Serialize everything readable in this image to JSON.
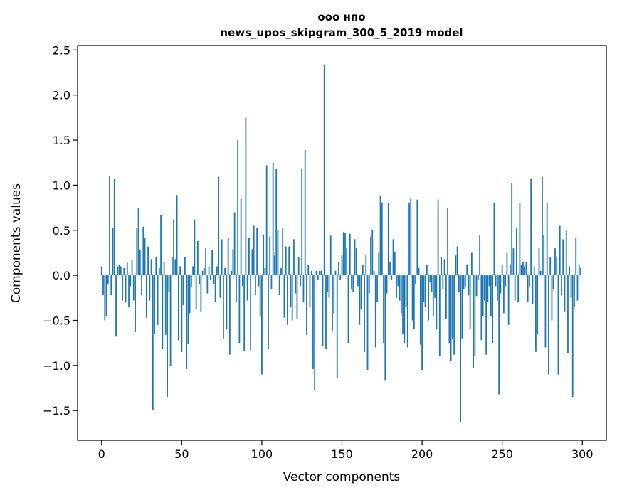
{
  "chart_data": {
    "type": "bar",
    "title_line1": "ооо нпо",
    "title_line2": "news_upos_skipgram_300_5_2019 model",
    "xlabel": "Vector components",
    "ylabel": "Components values",
    "xlim": [
      -15,
      315
    ],
    "ylim": [
      -1.83,
      2.55
    ],
    "x_ticks": [
      0,
      50,
      100,
      150,
      200,
      250,
      300
    ],
    "x_tick_labels": [
      "0",
      "50",
      "100",
      "150",
      "200",
      "250",
      "300"
    ],
    "y_ticks": [
      -1.5,
      -1.0,
      -0.5,
      0.0,
      0.5,
      1.0,
      1.5,
      2.0,
      2.5
    ],
    "y_tick_labels": [
      "−1.5",
      "−1.0",
      "−0.5",
      "0.0",
      "0.5",
      "1.0",
      "1.5",
      "2.0",
      "2.5"
    ],
    "bar_color": "#1f77b4",
    "values": [
      0.1,
      -0.22,
      -0.5,
      -0.45,
      -0.1,
      1.1,
      -0.22,
      0.53,
      1.07,
      -0.68,
      0.1,
      0.12,
      0.1,
      -0.28,
      0.08,
      -0.3,
      0.14,
      -0.35,
      -0.12,
      0.17,
      -0.28,
      -0.63,
      0.52,
      0.75,
      0.28,
      -0.22,
      0.54,
      0.42,
      -0.47,
      0.32,
      -0.28,
      0.18,
      -1.49,
      -0.65,
      0.2,
      -0.55,
      0.08,
      0.67,
      -0.82,
      0.15,
      -0.66,
      -1.35,
      -0.18,
      -1.01,
      0.2,
      0.62,
      0.18,
      0.89,
      -0.72,
      0.1,
      -0.85,
      -0.33,
      0.2,
      -1.04,
      -0.76,
      -0.42,
      -0.13,
      0.1,
      0.62,
      -0.38,
      0.38,
      -0.1,
      -0.4,
      0.05,
      0.08,
      0.3,
      -0.2,
      0.1,
      -0.05,
      0.28,
      -0.1,
      -0.3,
      0.1,
      1.09,
      -0.25,
      0.4,
      -0.7,
      0.08,
      -0.6,
      0.42,
      -0.88,
      0.05,
      0.29,
      0.7,
      -0.3,
      1.5,
      -0.75,
      0.85,
      -0.12,
      -0.84,
      1.75,
      -0.28,
      0.42,
      -0.83,
      0.29,
      0.55,
      -0.22,
      0.53,
      -0.12,
      -0.46,
      -1.1,
      0.45,
      0.08,
      1.22,
      -0.82,
      0.43,
      -0.15,
      1.25,
      0.22,
      1.18,
      0.5,
      -0.22,
      0.08,
      0.52,
      -0.47,
      0.32,
      -0.55,
      0.32,
      -0.35,
      -0.5,
      0.4,
      -0.2,
      -0.48,
      0.2,
      -0.12,
      1.18,
      -0.3,
      1.39,
      -0.66,
      0.12,
      -0.35,
      0.05,
      -1.04,
      -1.27,
      0.05,
      -0.05,
      0.05,
      0.05,
      -0.78,
      2.34,
      -0.82,
      -0.18,
      -0.25,
      0.44,
      -0.62,
      -0.42,
      0.05,
      -1.14,
      0.15,
      -0.05,
      0.22,
      0.48,
      0.47,
      0.3,
      -0.75,
      0.46,
      -0.15,
      -0.18,
      0.4,
      0.3,
      -0.12,
      -0.55,
      -0.38,
      0.12,
      -0.85,
      0.22,
      -1.05,
      -0.2,
      0.43,
      0.5,
      0.05,
      -0.8,
      -0.3,
      0.25,
      0.88,
      0.8,
      -0.75,
      -1.17,
      -0.2,
      0.8,
      0.15,
      -0.05,
      0.4,
      0.26,
      -0.25,
      -0.12,
      -0.28,
      -0.42,
      -0.65,
      -0.75,
      -0.35,
      -0.8,
      0.8,
      0.85,
      -0.5,
      -0.6,
      -0.1,
      0.84,
      0.08,
      -0.77,
      -1.05,
      -0.3,
      -0.35,
      0.12,
      -0.5,
      -0.08,
      -0.18,
      -0.45,
      -0.25,
      -0.6,
      0.84,
      -0.9,
      0.2,
      -0.15,
      0.18,
      -0.48,
      0.75,
      -0.75,
      -0.95,
      -0.7,
      -0.88,
      0.22,
      0.32,
      -0.18,
      -1.63,
      -0.7,
      -0.15,
      -0.12,
      0.12,
      -0.22,
      -0.6,
      0.25,
      -1.03,
      -0.9,
      -0.23,
      -0.05,
      0.45,
      -0.72,
      -0.45,
      -0.28,
      -0.88,
      -0.3,
      -0.12,
      -0.45,
      -0.75,
      0.8,
      -0.12,
      -0.28,
      -1.32,
      -0.2,
      0.12,
      -0.42,
      -0.12,
      0.25,
      -0.55,
      0.12,
      1.02,
      0.3,
      -0.28,
      0.52,
      -0.3,
      0.8,
      0.12,
      0.15,
      0.1,
      0.15,
      -0.3,
      -0.12,
      1.07,
      -0.32,
      0.1,
      -0.85,
      -0.65,
      0.3,
      0.05,
      1.09,
      0.45,
      -0.8,
      0.8,
      -1.1,
      0.2,
      -0.5,
      -0.15,
      0.3,
      0.2,
      -1.1,
      0.55,
      -0.22,
      0.4,
      -0.4,
      0.5,
      -0.86,
      0.1,
      -0.25,
      -1.35,
      -0.35,
      0.42,
      -0.28,
      0.12,
      0.08
    ]
  }
}
